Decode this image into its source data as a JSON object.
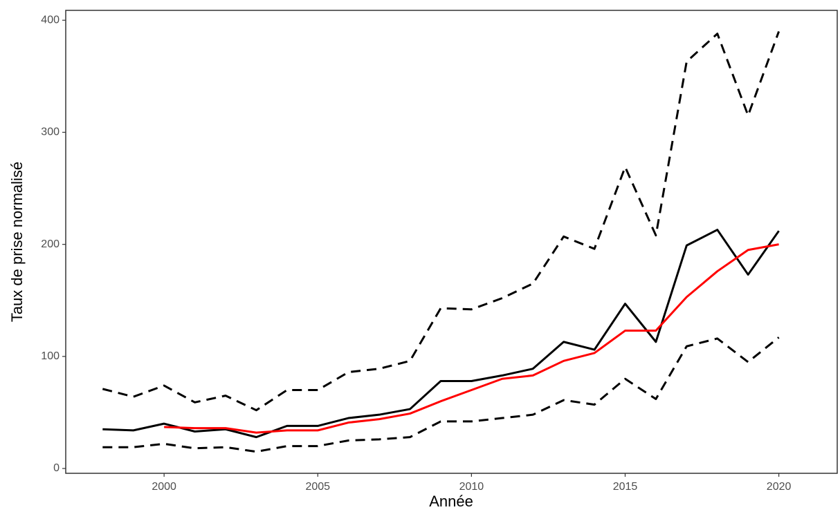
{
  "chart_data": {
    "type": "line",
    "x_label": "Année",
    "y_label": "Taux de prise normalisé",
    "x": [
      1998,
      1999,
      2000,
      2001,
      2002,
      2003,
      2004,
      2005,
      2006,
      2007,
      2008,
      2009,
      2010,
      2011,
      2012,
      2013,
      2014,
      2015,
      2016,
      2017,
      2018,
      2019,
      2020
    ],
    "series": [
      {
        "color": "#000000",
        "style": "dashed",
        "values": [
          71,
          64,
          74,
          59,
          65,
          52,
          70,
          70,
          86,
          89,
          96,
          143,
          142,
          152,
          165,
          207,
          196,
          269,
          208,
          363,
          388,
          315,
          390
        ]
      },
      {
        "color": "#000000",
        "style": "dashed",
        "values": [
          19,
          19,
          22,
          18,
          19,
          15,
          20,
          20,
          25,
          26,
          28,
          42,
          42,
          45,
          48,
          61,
          57,
          80,
          62,
          109,
          116,
          95,
          117
        ]
      },
      {
        "color": "#000000",
        "style": "solid",
        "values": [
          35,
          34,
          40,
          33,
          35,
          28,
          38,
          38,
          45,
          48,
          53,
          78,
          78,
          83,
          89,
          113,
          106,
          147,
          113,
          199,
          213,
          173,
          212
        ]
      },
      {
        "color": "#ff0000",
        "style": "solid",
        "values": [
          null,
          null,
          37,
          36,
          36,
          32,
          34,
          34,
          41,
          44,
          49,
          60,
          70,
          80,
          83,
          96,
          103,
          123,
          123,
          153,
          176,
          195,
          200
        ]
      }
    ],
    "xlim": [
      1996.8,
      2021.9
    ],
    "ylim": [
      -4.3,
      408.8
    ],
    "xticks": [
      2000,
      2005,
      2010,
      2015,
      2020
    ],
    "yticks": [
      0,
      100,
      200,
      300,
      400
    ],
    "grid": false
  }
}
